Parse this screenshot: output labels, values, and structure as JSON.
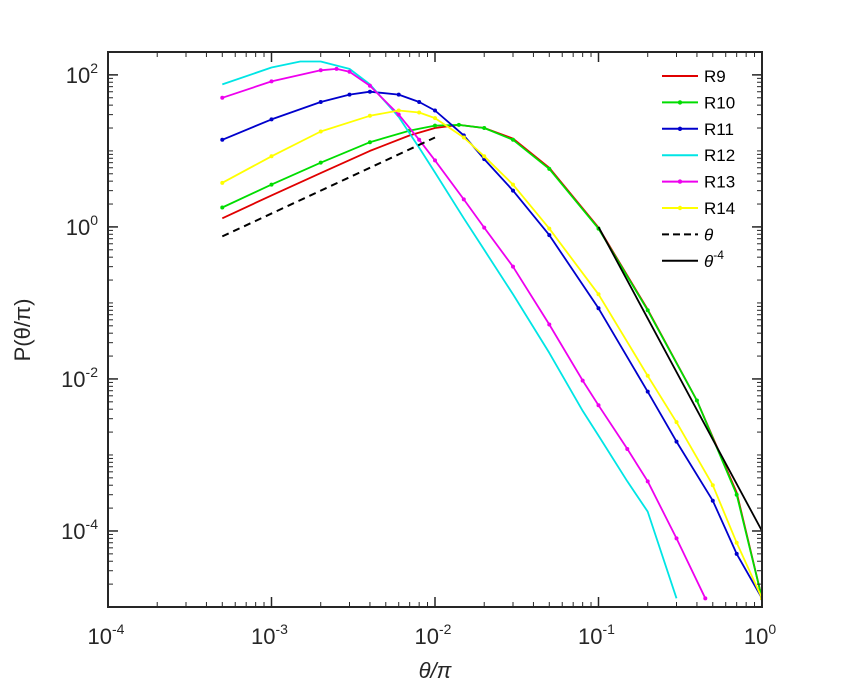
{
  "chart_data": {
    "type": "line",
    "x_scale": "log",
    "y_scale": "log",
    "xlim": [
      0.0001,
      1
    ],
    "ylim": [
      1e-05,
      200
    ],
    "xlabel": "θ/π",
    "ylabel": "P(θ/π)",
    "x_ticks": [
      {
        "value": 0.0001,
        "base": "10",
        "exp": "-4"
      },
      {
        "value": 0.001,
        "base": "10",
        "exp": "-3"
      },
      {
        "value": 0.01,
        "base": "10",
        "exp": "-2"
      },
      {
        "value": 0.1,
        "base": "10",
        "exp": "-1"
      },
      {
        "value": 1,
        "base": "10",
        "exp": "0"
      }
    ],
    "y_ticks": [
      {
        "value": 0.0001,
        "base": "10",
        "exp": "-4"
      },
      {
        "value": 0.01,
        "base": "10",
        "exp": "-2"
      },
      {
        "value": 1,
        "base": "10",
        "exp": "0"
      },
      {
        "value": 100,
        "base": "10",
        "exp": "2"
      }
    ],
    "grid": false,
    "legend_position": "top-right",
    "series": [
      {
        "name": "R9",
        "color": "#e00000",
        "style": "solid",
        "x": [
          0.0005,
          0.001,
          0.002,
          0.004,
          0.007,
          0.01,
          0.014,
          0.02,
          0.03,
          0.05,
          0.1,
          0.2,
          0.4,
          0.7,
          1.0
        ],
        "y": [
          1.3,
          2.6,
          5.1,
          10,
          16,
          20,
          22,
          20,
          14.5,
          6.0,
          0.98,
          0.082,
          0.0052,
          0.00032,
          1.3e-05
        ]
      },
      {
        "name": "R10",
        "color": "#00dd00",
        "style": "solid-dots",
        "x": [
          0.0005,
          0.001,
          0.002,
          0.004,
          0.007,
          0.01,
          0.014,
          0.02,
          0.03,
          0.05,
          0.1,
          0.2,
          0.4,
          0.7,
          1.0
        ],
        "y": [
          1.8,
          3.6,
          7.0,
          13,
          18.5,
          21.5,
          22,
          20,
          14,
          5.8,
          0.95,
          0.08,
          0.0052,
          0.0003,
          1.3e-05
        ]
      },
      {
        "name": "R11",
        "color": "#0000cc",
        "style": "solid-dots",
        "x": [
          0.0005,
          0.001,
          0.002,
          0.003,
          0.004,
          0.006,
          0.008,
          0.01,
          0.015,
          0.02,
          0.03,
          0.05,
          0.1,
          0.2,
          0.3,
          0.5,
          0.7,
          1.0
        ],
        "y": [
          14,
          26,
          44,
          55,
          60,
          55,
          44,
          34,
          16,
          7.8,
          3.0,
          0.78,
          0.085,
          0.0068,
          0.0015,
          0.00025,
          5e-05,
          1.3e-05
        ]
      },
      {
        "name": "R12",
        "color": "#00e5e5",
        "style": "solid",
        "x": [
          0.0005,
          0.001,
          0.0015,
          0.002,
          0.003,
          0.004,
          0.006,
          0.008,
          0.01,
          0.015,
          0.02,
          0.03,
          0.05,
          0.08,
          0.1,
          0.15,
          0.2,
          0.3
        ],
        "y": [
          75,
          125,
          150,
          150,
          120,
          75,
          28,
          11,
          5.2,
          1.3,
          0.5,
          0.13,
          0.022,
          0.0038,
          0.0018,
          0.00045,
          0.00018,
          1.3e-05
        ]
      },
      {
        "name": "R13",
        "color": "#ee00ee",
        "style": "solid-dots",
        "x": [
          0.0005,
          0.001,
          0.002,
          0.0025,
          0.003,
          0.004,
          0.006,
          0.008,
          0.01,
          0.015,
          0.02,
          0.03,
          0.05,
          0.08,
          0.1,
          0.15,
          0.2,
          0.3,
          0.45
        ],
        "y": [
          50,
          82,
          115,
          120,
          110,
          72,
          30,
          14,
          7.5,
          2.3,
          0.98,
          0.3,
          0.052,
          0.0095,
          0.0045,
          0.0012,
          0.00045,
          8e-05,
          1.3e-05
        ]
      },
      {
        "name": "R14",
        "color": "#ffff00",
        "style": "solid-dots",
        "x": [
          0.0005,
          0.001,
          0.002,
          0.004,
          0.006,
          0.008,
          0.01,
          0.015,
          0.02,
          0.03,
          0.05,
          0.1,
          0.2,
          0.3,
          0.5,
          0.7,
          1.0
        ],
        "y": [
          3.8,
          8.5,
          18,
          29,
          34,
          32,
          27,
          15,
          8.5,
          3.6,
          0.95,
          0.13,
          0.011,
          0.0027,
          0.0004,
          7e-05,
          1.3e-05
        ]
      },
      {
        "name": "θ",
        "color": "#000000",
        "style": "dashed",
        "x": [
          0.0005,
          0.01
        ],
        "y": [
          0.75,
          15
        ]
      },
      {
        "name": "θ^-4",
        "color": "#000000",
        "style": "solid",
        "x": [
          0.1,
          1
        ],
        "y": [
          1,
          0.0001
        ]
      }
    ],
    "legend": [
      {
        "label": "R9",
        "color": "#e00000",
        "style": "solid"
      },
      {
        "label": "R10",
        "color": "#00dd00",
        "style": "solid-dots"
      },
      {
        "label": "R11",
        "color": "#0000cc",
        "style": "solid-dots"
      },
      {
        "label": "R12",
        "color": "#00e5e5",
        "style": "solid"
      },
      {
        "label": "R13",
        "color": "#ee00ee",
        "style": "solid-dots"
      },
      {
        "label": "R14",
        "color": "#ffff00",
        "style": "solid-dots"
      },
      {
        "label": "θ",
        "sup": "",
        "color": "#000000",
        "style": "dashed"
      },
      {
        "label": "θ",
        "sup": "-4",
        "color": "#000000",
        "style": "solid"
      }
    ]
  }
}
